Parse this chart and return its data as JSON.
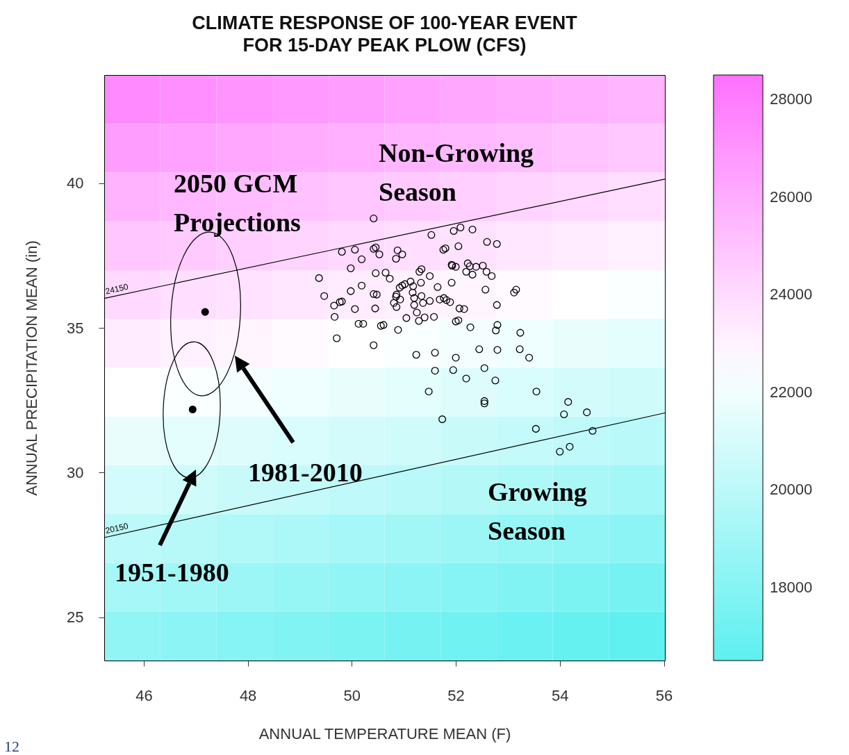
{
  "chart_data": [
    {
      "type": "heatmap",
      "categories": [
        null,
        null,
        null,
        null,
        null,
        null,
        null,
        null,
        null,
        null
      ],
      "y_categories": [
        null,
        null,
        null,
        null,
        null,
        null,
        null,
        null,
        null,
        null,
        null,
        null
      ],
      "clim": [
        16500,
        28500
      ],
      "cticks": [
        18000,
        20000,
        22000,
        24000,
        26000,
        28000
      ],
      "cells": [
        [
          27400,
          27200,
          27000,
          26800,
          26600,
          26400,
          26200,
          26000,
          25800,
          25600
        ],
        [
          26600,
          26400,
          26200,
          26000,
          25800,
          25600,
          25400,
          25200,
          25000,
          24800
        ],
        [
          25700,
          25500,
          25300,
          25100,
          24900,
          24700,
          24500,
          24300,
          24100,
          23900
        ],
        [
          24900,
          24700,
          24500,
          24300,
          24100,
          23900,
          23700,
          23500,
          23300,
          23100
        ],
        [
          24100,
          23900,
          23700,
          23500,
          23300,
          23100,
          22900,
          22700,
          22500,
          22300
        ],
        [
          23300,
          23100,
          22900,
          22700,
          22500,
          22300,
          22100,
          21900,
          21700,
          21500
        ],
        [
          22500,
          22300,
          22100,
          21900,
          21700,
          21500,
          21300,
          21100,
          20900,
          20700
        ],
        [
          21700,
          21500,
          21300,
          21100,
          20900,
          20700,
          20500,
          20300,
          20100,
          19900
        ],
        [
          20900,
          20700,
          20500,
          20300,
          20100,
          19900,
          19700,
          19500,
          19300,
          19100
        ],
        [
          20000,
          19800,
          19600,
          19400,
          19200,
          19000,
          18800,
          18600,
          18400,
          18200
        ],
        [
          19200,
          19000,
          18800,
          18600,
          18400,
          18200,
          18000,
          17800,
          17600,
          17400
        ],
        [
          18400,
          18200,
          18000,
          17800,
          17600,
          17400,
          17200,
          17000,
          16800,
          16600
        ]
      ]
    },
    {
      "type": "scatter",
      "title": "CLIMATE RESPONSE OF 100-YEAR EVENT\nFOR 15-DAY PEAK PLOW (CFS)",
      "xlabel": "ANNUAL TEMPERATURE MEAN (F)",
      "ylabel": "ANNUAL PRECIPITATION MEAN (in)",
      "xlim": [
        45.24,
        56.02
      ],
      "ylim": [
        23.5,
        43.74
      ],
      "xticks": [
        46,
        48,
        50,
        52,
        54,
        56
      ],
      "yticks": [
        25,
        30,
        35,
        40
      ],
      "grid": false,
      "legend": false,
      "series": [
        {
          "type": "scatter",
          "marker": "circle",
          "color": "#000000",
          "x": [
            50.42,
            49.37,
            49.47,
            49.81,
            50.06,
            49.98,
            50.19,
            50.42,
            50.46,
            50.53,
            50.88,
            50.85,
            50.97,
            50.65,
            50.46,
            50.42,
            50.48,
            50.19,
            50.06,
            49.77,
            49.66,
            49.67,
            49.71,
            49.81,
            49.98,
            50.13,
            50.22,
            50.56,
            50.61,
            50.42,
            50.45,
            50.73,
            50.86,
            50.92,
            50.97,
            51.02,
            50.85,
            50.81,
            50.86,
            50.93,
            50.89,
            51.05,
            51.13,
            51.18,
            51.3,
            51.34,
            51.17,
            51.2,
            51.2,
            51.25,
            51.33,
            51.34,
            51.37,
            51.29,
            51.4,
            51.5,
            51.5,
            51.58,
            51.65,
            51.69,
            51.77,
            51.82,
            51.89,
            51.92,
            51.93,
            51.53,
            51.8,
            51.96,
            52.05,
            52.09,
            52.32,
            52.23,
            51.92,
            52,
            52.2,
            52.16,
            52.07,
            52,
            51.76,
            52.05,
            52.27,
            52.39,
            52.52,
            52.32,
            52.59,
            52.69,
            52.6,
            52.79,
            52.57,
            52.79,
            52.8,
            52.77,
            52.28,
            52.45,
            52.8,
            53.12,
            53.16,
            53.24,
            53.23,
            53.41,
            52,
            51.95,
            51.6,
            51.24,
            51.6,
            52.2,
            52.76,
            52.55,
            52.55,
            52.55,
            51.74,
            51.48,
            53.55,
            53.54,
            54.16,
            54.08,
            54.52,
            54.63,
            54.19,
            54
          ],
          "values": [
            38.78,
            36.72,
            36.1,
            37.63,
            37.7,
            37.06,
            37.37,
            37.73,
            37.78,
            37.54,
            37.68,
            37.39,
            37.54,
            36.91,
            36.89,
            36.17,
            36.15,
            36.46,
            35.65,
            35.89,
            35.77,
            35.38,
            34.64,
            35.91,
            36.27,
            35.14,
            35.14,
            35.07,
            35.1,
            34.4,
            35.67,
            36.7,
            36.15,
            36.39,
            36.46,
            36.51,
            36.08,
            35.86,
            35.72,
            35.98,
            34.93,
            35.34,
            36.6,
            36.44,
            36.94,
            37.03,
            36.22,
            36.03,
            35.79,
            35.53,
            36.56,
            36.1,
            35.86,
            35.24,
            35.36,
            36.79,
            35.93,
            35.38,
            36.41,
            35.98,
            36.03,
            35.96,
            35.89,
            36.56,
            37.15,
            38.21,
            37.75,
            38.35,
            37.82,
            38.47,
            38.4,
            37.23,
            37.18,
            37.11,
            36.94,
            35.65,
            35.67,
            35.22,
            37.7,
            35.26,
            37.13,
            37.11,
            37.15,
            36.84,
            36.94,
            36.79,
            37.97,
            37.9,
            36.32,
            35.79,
            35.1,
            34.91,
            35.02,
            34.26,
            34.24,
            36.22,
            36.32,
            34.83,
            34.26,
            33.97,
            33.97,
            33.54,
            34.14,
            34.07,
            33.52,
            33.25,
            33.18,
            33.61,
            32.47,
            32.39,
            31.84,
            32.8,
            32.8,
            31.51,
            32.44,
            32.01,
            32.08,
            31.44,
            30.89,
            30.72
          ]
        },
        {
          "type": "scatter",
          "marker": "circle",
          "color": "#000000",
          "x": [
            47.18,
            46.94
          ],
          "values": [
            35.55,
            32.18
          ]
        },
        {
          "type": "line",
          "name": "24150",
          "color": "#000000",
          "x": [
            45.24,
            56.02
          ],
          "values": [
            36.02,
            40.14
          ]
        },
        {
          "type": "line",
          "name": "20150",
          "color": "#000000",
          "x": [
            45.24,
            56.02
          ],
          "values": [
            27.75,
            32.06
          ]
        }
      ],
      "annotations": [
        "2050 GCM\nProjections",
        "Non-Growing\nSeason",
        "Growing\nSeason",
        "1981-2010",
        "1951-1980",
        "12"
      ]
    }
  ]
}
